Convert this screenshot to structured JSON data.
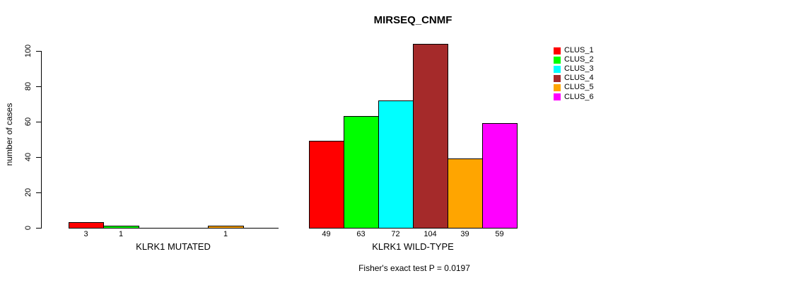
{
  "title": "MIRSEQ_CNMF",
  "caption": "Fisher's exact test P = 0.0197",
  "chart_data": {
    "type": "bar",
    "title": "MIRSEQ_CNMF",
    "xlabel": "",
    "ylabel": "number of cases",
    "ylim": [
      0,
      104
    ],
    "yticks": [
      0,
      20,
      40,
      60,
      80,
      100
    ],
    "grid": false,
    "legend_position": "top-right",
    "categories": [
      "KLRK1 MUTATED",
      "KLRK1 WILD-TYPE"
    ],
    "series": [
      {
        "name": "CLUS_1",
        "color": "#FF0000",
        "values": [
          3,
          49
        ]
      },
      {
        "name": "CLUS_2",
        "color": "#00FF00",
        "values": [
          1,
          63
        ]
      },
      {
        "name": "CLUS_3",
        "color": "#00FFFF",
        "values": [
          0,
          72
        ]
      },
      {
        "name": "CLUS_4",
        "color": "#A52A2A",
        "values": [
          0,
          104
        ]
      },
      {
        "name": "CLUS_5",
        "color": "#FFA500",
        "values": [
          1,
          39
        ]
      },
      {
        "name": "CLUS_6",
        "color": "#FF00FF",
        "values": [
          0,
          59
        ]
      }
    ],
    "bar_value_labels": [
      [
        "3",
        "1",
        "",
        "",
        "1",
        ""
      ],
      [
        "49",
        "63",
        "72",
        "104",
        "39",
        "59"
      ]
    ],
    "annotation": "Fisher's exact test P = 0.0197"
  }
}
